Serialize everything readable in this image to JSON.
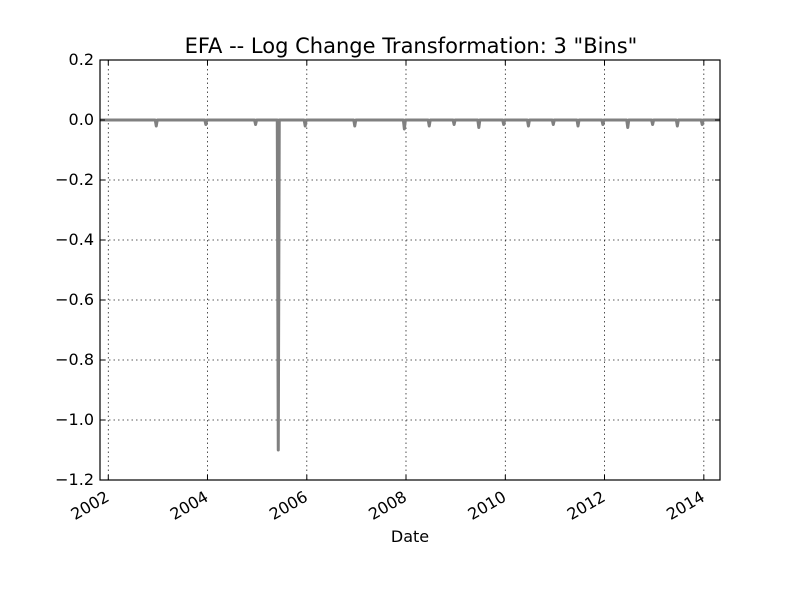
{
  "chart_data": {
    "type": "line",
    "title": "EFA -- Log Change Transformation: 3 \"Bins\"",
    "xlabel": "Date",
    "ylabel": "",
    "xlim": [
      "2001-11-01",
      "2014-04-30"
    ],
    "ylim": [
      -1.2,
      0.2
    ],
    "x_ticks": [
      "2002",
      "2004",
      "2006",
      "2008",
      "2010",
      "2012",
      "2014"
    ],
    "y_ticks": [
      "0.2",
      "0.0",
      "−0.2",
      "−0.4",
      "−0.6",
      "−0.8",
      "−1.0",
      "−1.2"
    ],
    "grid": true,
    "legend": "none",
    "series_color": "#808080",
    "series": [
      {
        "x": [
          "2001-11-01",
          "2002-12-20",
          "2003-12-20",
          "2004-12-20",
          "2005-06-05",
          "2005-12-20",
          "2006-12-20",
          "2007-12-20",
          "2008-06-20",
          "2008-12-20",
          "2009-06-20",
          "2009-12-20",
          "2010-06-20",
          "2010-12-20",
          "2011-06-20",
          "2011-12-20",
          "2012-06-20",
          "2012-12-20",
          "2013-06-20",
          "2013-12-20",
          "2014-04-30"
        ],
        "y": [
          0.0,
          -0.02,
          -0.015,
          -0.015,
          -1.1,
          -0.02,
          -0.02,
          -0.03,
          -0.02,
          -0.015,
          -0.025,
          -0.015,
          -0.02,
          -0.015,
          -0.02,
          -0.015,
          -0.025,
          -0.015,
          -0.02,
          -0.015,
          0.0
        ]
      }
    ]
  }
}
